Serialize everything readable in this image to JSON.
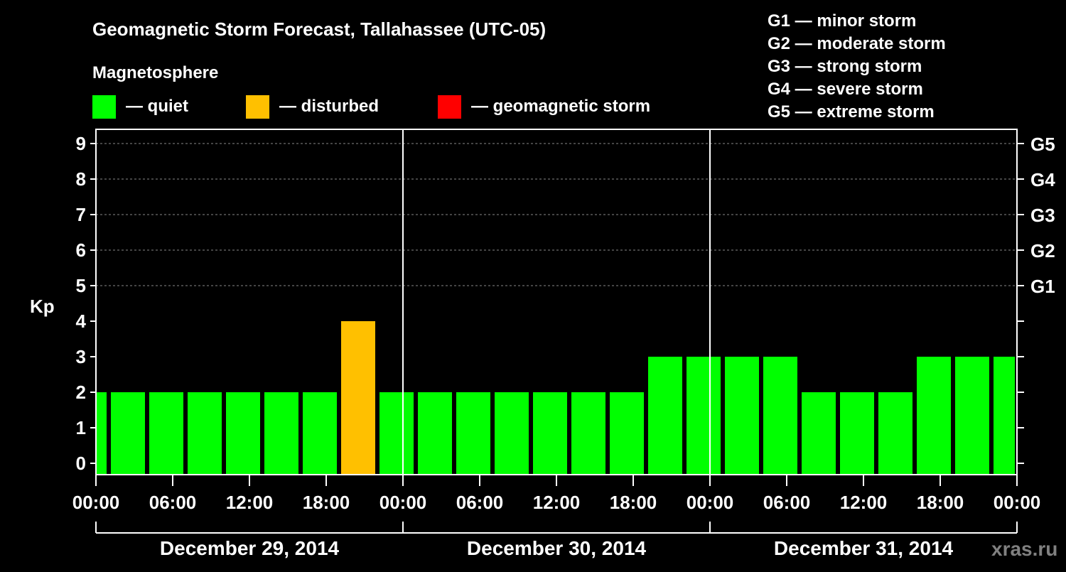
{
  "chart_data": {
    "type": "bar",
    "title": "Geomagnetic Storm Forecast, Tallahassee (UTC-05)",
    "legend_title": "Magnetosphere",
    "legend": [
      {
        "label": "— quiet",
        "color": "#00ff00"
      },
      {
        "label": "— disturbed",
        "color": "#ffc000"
      },
      {
        "label": "— geomagnetic storm",
        "color": "#ff0000"
      }
    ],
    "storm_scale": [
      "G1 — minor storm",
      "G2 — moderate storm",
      "G3 — strong storm",
      "G4 — severe storm",
      "G5 — extreme storm"
    ],
    "ylabel": "Kp",
    "ylim": [
      0,
      9
    ],
    "yticks": [
      "0",
      "1",
      "2",
      "3",
      "4",
      "5",
      "6",
      "7",
      "8",
      "9"
    ],
    "right_ticks": [
      {
        "kp": 5,
        "label": "G1"
      },
      {
        "kp": 6,
        "label": "G2"
      },
      {
        "kp": 7,
        "label": "G3"
      },
      {
        "kp": 8,
        "label": "G4"
      },
      {
        "kp": 9,
        "label": "G5"
      }
    ],
    "xticks": [
      "00:00",
      "06:00",
      "12:00",
      "18:00",
      "00:00",
      "06:00",
      "12:00",
      "18:00",
      "00:00",
      "06:00",
      "12:00",
      "18:00",
      "00:00"
    ],
    "days": [
      "December 29, 2014",
      "December 30, 2014",
      "December 31, 2014"
    ],
    "bar_hours": 3,
    "first_bar_start_hour": -2,
    "values": [
      2,
      2,
      2,
      2,
      2,
      2,
      2,
      4,
      2,
      2,
      2,
      2,
      2,
      2,
      2,
      3,
      3,
      3,
      3,
      2,
      2,
      2,
      3,
      3,
      3
    ],
    "watermark": "xras.ru"
  }
}
